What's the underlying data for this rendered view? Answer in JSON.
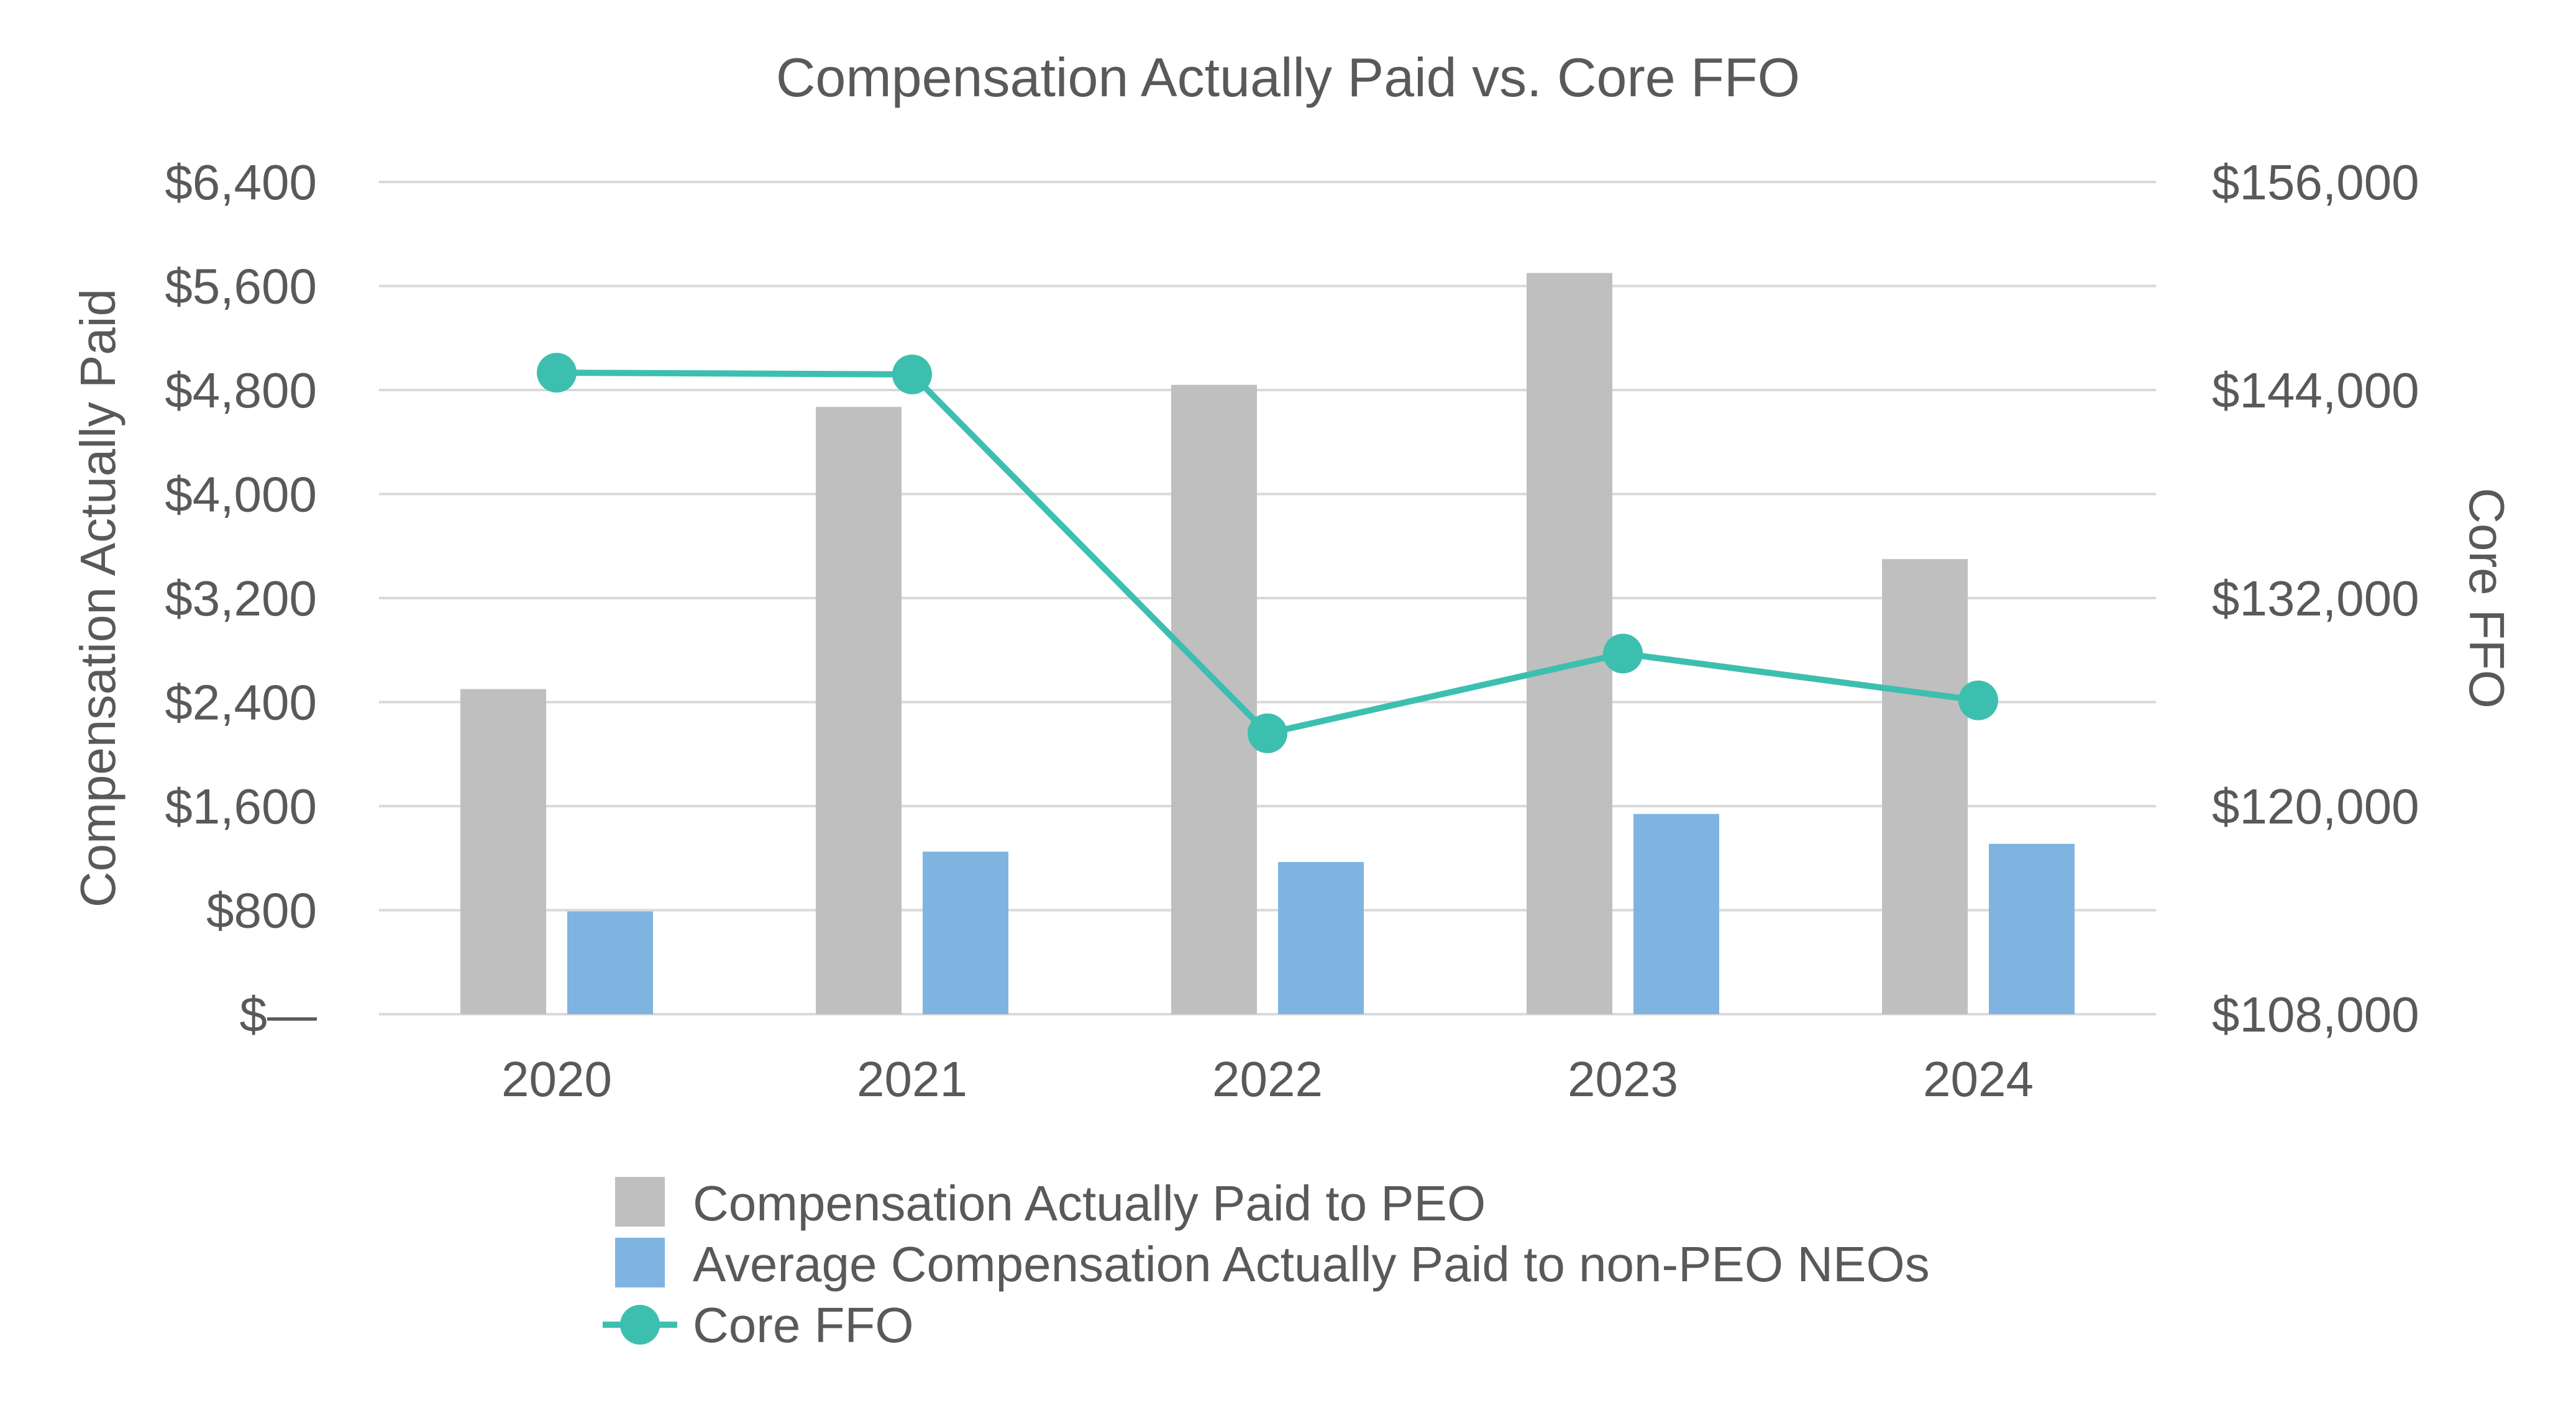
{
  "chart_data": {
    "type": "bar+line",
    "title": "Compensation Actually Paid vs. Core FFO",
    "categories": [
      "2020",
      "2021",
      "2022",
      "2023",
      "2024"
    ],
    "y_left": {
      "label": "Compensation Actually Paid",
      "range": [
        0,
        6400
      ],
      "ticks": [
        0,
        800,
        1600,
        2400,
        3200,
        4000,
        4800,
        5600,
        6400
      ],
      "tick_labels": [
        "$—",
        "$800",
        "$1,600",
        "$2,400",
        "$3,200",
        "$4,000",
        "$4,800",
        "$5,600",
        "$6,400"
      ]
    },
    "y_right": {
      "label": "Core FFO",
      "range": [
        108000,
        156000
      ],
      "ticks": [
        108000,
        120000,
        132000,
        144000,
        156000
      ],
      "tick_labels": [
        "$108,000",
        "$120,000",
        "$132,000",
        "$144,000",
        "$156,000"
      ]
    },
    "grid": true,
    "series": [
      {
        "name": "Compensation Actually Paid to PEO",
        "kind": "bar",
        "axis": "left",
        "color": "#bfbfbf",
        "values": [
          2500,
          4670,
          4840,
          5700,
          3500
        ]
      },
      {
        "name": "Average Compensation Actually Paid to non-PEO NEOs",
        "kind": "bar",
        "axis": "left",
        "color": "#7fb4e1",
        "values": [
          790,
          1250,
          1170,
          1540,
          1310
        ]
      },
      {
        "name": "Core FFO",
        "kind": "line",
        "axis": "right",
        "color": "#3dbfb0",
        "values": [
          145000,
          144900,
          124200,
          128800,
          126100
        ]
      }
    ],
    "legend_position": "bottom"
  }
}
